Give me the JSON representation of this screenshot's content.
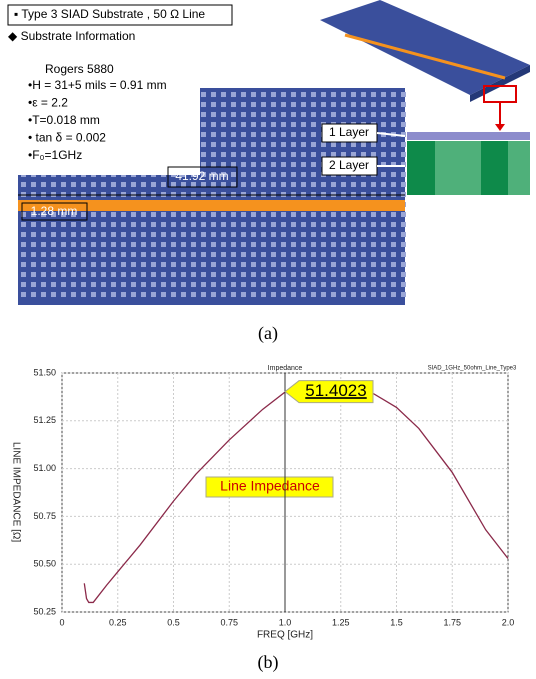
{
  "figure_a": {
    "heading": "▪ Type 3 SIAD Substrate , 50 Ω Line",
    "subheading": "◆ Substrate Information",
    "material": "Rogers 5880",
    "specs": [
      "•H = 31+5 mils = 0.91 mm",
      "•ε = 2.2",
      "•T=0.018 mm",
      "• tan δ = 0.002",
      "•F₀=1GHz"
    ],
    "length_label": "41.92 mm",
    "width_label": "1.28 mm",
    "layer_labels": [
      "1 Layer",
      "2 Layer"
    ],
    "caption": "(a)"
  },
  "chart_data": {
    "type": "line",
    "title": "Impedance",
    "legend_title": "SIAD_1GHz_50ohm_Line_Type3",
    "xlabel": "FREQ [GHz]",
    "ylabel": "LINE IMPEDANCE [Ω]",
    "x": [
      0.1,
      0.11,
      0.12,
      0.14,
      0.16,
      0.2,
      0.25,
      0.35,
      0.5,
      0.6,
      0.75,
      0.9,
      1.0,
      1.1,
      1.2,
      1.3,
      1.4,
      1.5,
      1.6,
      1.75,
      1.9,
      2.0
    ],
    "series": [
      {
        "name": "Line Impedance",
        "color": "#8b2a4a",
        "values": [
          50.4,
          50.32,
          50.3,
          50.3,
          50.33,
          50.39,
          50.46,
          50.6,
          50.83,
          50.97,
          51.15,
          51.31,
          51.4,
          51.44,
          51.45,
          51.43,
          51.39,
          51.32,
          51.21,
          50.98,
          50.68,
          50.53
        ]
      }
    ],
    "marker_x": 1.0,
    "marker_value": 51.4023,
    "xlim": [
      0,
      2.0
    ],
    "ylim": [
      50.25,
      51.5
    ],
    "xticks": [
      0,
      0.25,
      0.5,
      0.75,
      {
        "value": 1.0,
        "label": "1.0"
      },
      1.25,
      1.5,
      1.75,
      {
        "value": 2.0,
        "label": "2.0"
      }
    ],
    "yticks": [
      50.25,
      {
        "value": 50.5,
        "label": "50.50"
      },
      50.75,
      {
        "value": 51.0,
        "label": "51.00"
      },
      51.25,
      {
        "value": 51.5,
        "label": "51.50"
      }
    ],
    "grid": true
  },
  "caption_b": "(b)"
}
